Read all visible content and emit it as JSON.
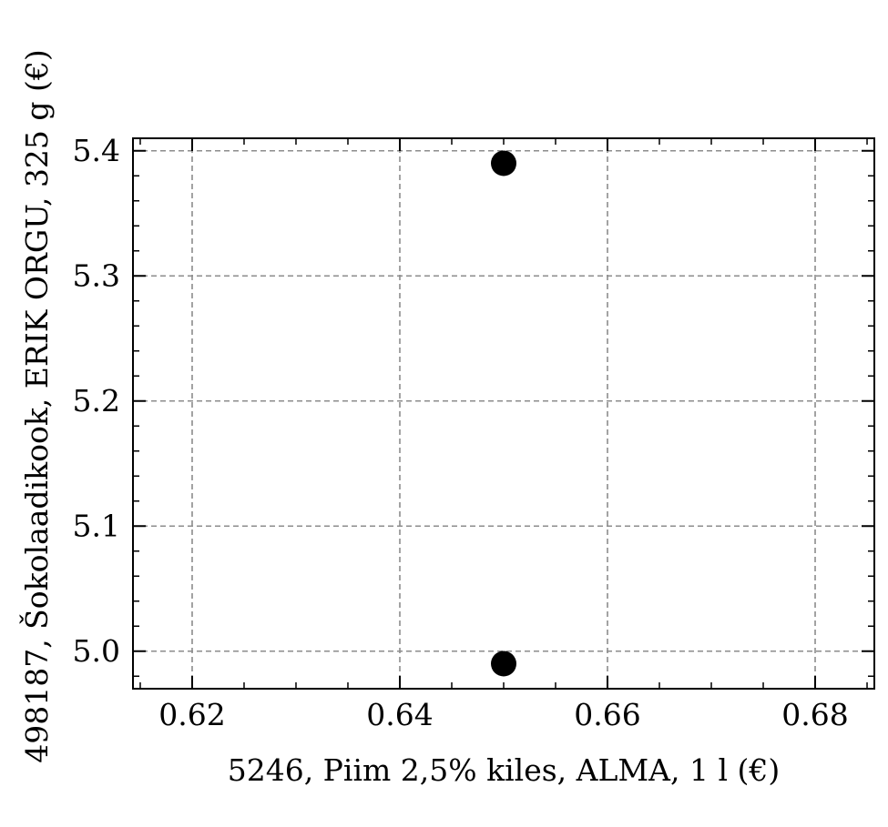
{
  "chart_data": {
    "type": "scatter",
    "xlabel": "5246, Piim 2,5% kiles, ALMA, 1 l (€)",
    "ylabel": "498187, Šokolaadikook, ERIK ORGU, 325 g (€)",
    "xlim": [
      0.6143,
      0.6857
    ],
    "ylim": [
      4.97,
      5.41
    ],
    "x_ticks": [
      0.62,
      0.64,
      0.66,
      0.68
    ],
    "x_tick_labels": [
      "0.62",
      "0.64",
      "0.66",
      "0.68"
    ],
    "y_ticks": [
      5.0,
      5.1,
      5.2,
      5.3,
      5.4
    ],
    "y_tick_labels": [
      "5.0",
      "5.1",
      "5.2",
      "5.3",
      "5.4"
    ],
    "grid": true,
    "points": [
      {
        "x": 0.65,
        "y": 5.39
      },
      {
        "x": 0.65,
        "y": 4.99
      }
    ],
    "colors": {
      "marker": "#000000",
      "grid": "#8c8c8c",
      "axes": "#000000"
    }
  }
}
